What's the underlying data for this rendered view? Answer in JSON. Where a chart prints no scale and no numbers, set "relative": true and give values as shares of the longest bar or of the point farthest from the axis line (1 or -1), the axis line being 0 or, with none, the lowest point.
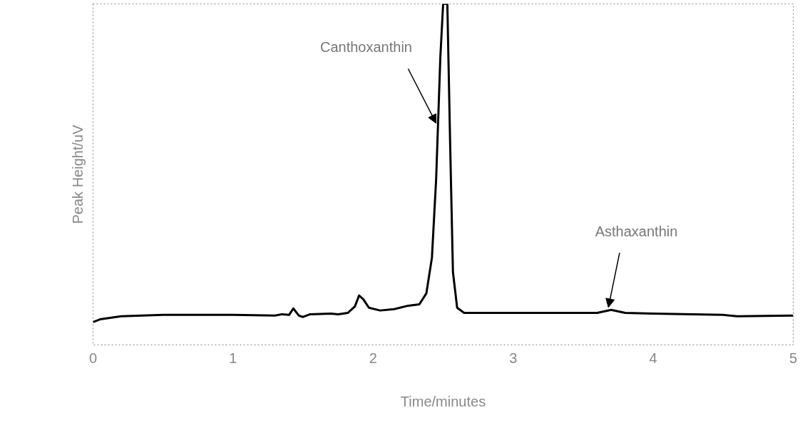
{
  "chart_data": {
    "type": "line",
    "relative": true,
    "xlabel": "Time/minutes",
    "ylabel": "Peak Height/uV",
    "xlim": [
      0,
      5
    ],
    "xticks": [
      0,
      1,
      2,
      3,
      4,
      5
    ],
    "grid": false,
    "marker": "none",
    "line_style": "solid",
    "series": [
      {
        "color": "#000000",
        "x": [
          0,
          0.05,
          0.2,
          0.5,
          1.0,
          1.3,
          1.35,
          1.4,
          1.43,
          1.47,
          1.5,
          1.55,
          1.7,
          1.75,
          1.82,
          1.87,
          1.9,
          1.93,
          1.97,
          2.05,
          2.15,
          2.25,
          2.33,
          2.38,
          2.42,
          2.45,
          2.48,
          2.5,
          2.53,
          2.55,
          2.57,
          2.6,
          2.65,
          3.0,
          3.6,
          3.7,
          3.8,
          4.0,
          4.5,
          4.6,
          5.0
        ],
        "values": [
          0.067,
          0.075,
          0.084,
          0.088,
          0.088,
          0.086,
          0.09,
          0.088,
          0.107,
          0.086,
          0.082,
          0.09,
          0.092,
          0.09,
          0.094,
          0.113,
          0.145,
          0.134,
          0.109,
          0.101,
          0.105,
          0.115,
          0.119,
          0.151,
          0.256,
          0.486,
          0.843,
          1.0,
          1.0,
          0.591,
          0.214,
          0.109,
          0.094,
          0.094,
          0.094,
          0.103,
          0.094,
          0.092,
          0.088,
          0.084,
          0.086
        ]
      }
    ],
    "annotations": [
      {
        "text": "Canthoxanthin",
        "x": 2.45,
        "y": 0.65
      },
      {
        "text": "Asthaxanthin",
        "x": 3.68,
        "y": 0.11
      }
    ]
  }
}
